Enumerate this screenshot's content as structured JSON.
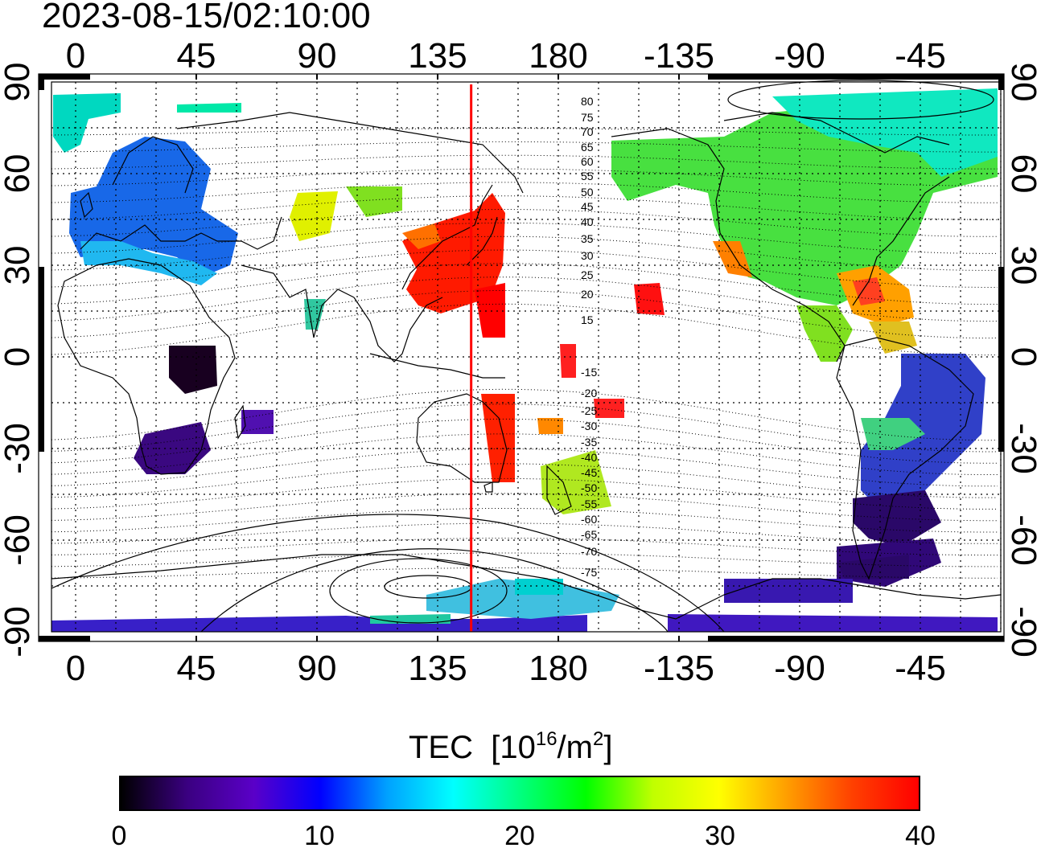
{
  "timestamp": "2023-08-15/02:10:00",
  "map": {
    "projection": "equirectangular",
    "central_longitude": 180,
    "lon_ticks_top": [
      "0",
      "45",
      "90",
      "135",
      "180",
      "-135",
      "-90",
      "-45"
    ],
    "lon_ticks_bottom": [
      "0",
      "45",
      "90",
      "135",
      "180",
      "-135",
      "-90",
      "-45"
    ],
    "lat_ticks_left": [
      "90",
      "60",
      "30",
      "0",
      "-30",
      "-60",
      "-90"
    ],
    "lat_ticks_right": [
      "90",
      "60",
      "30",
      "0",
      "-30",
      "-60",
      "-90"
    ],
    "meridian_marker": {
      "longitude": 147.5,
      "color": "#ff0000"
    },
    "magnetic_latitude_labels": [
      "80",
      "75",
      "70",
      "65",
      "60",
      "55",
      "50",
      "45",
      "40",
      "35",
      "30",
      "25",
      "20",
      "15",
      "-15",
      "-20",
      "-25",
      "-30",
      "-35",
      "-40",
      "-45",
      "-50",
      "-55",
      "-60",
      "-65",
      "-70",
      "-75"
    ],
    "grid": "dotted, every 15 degrees"
  },
  "colorbar": {
    "title": "TEC",
    "unit_prefix": "[10",
    "unit_exp": "16",
    "unit_mid": "/m",
    "unit_exp2": "2",
    "unit_suffix": "]",
    "ticks": [
      "0",
      "10",
      "20",
      "30",
      "40"
    ],
    "range": [
      0,
      40
    ],
    "stops": [
      "#000000",
      "#3a0080",
      "#5a00c8",
      "#0000ff",
      "#00a0ff",
      "#00ffff",
      "#00ff80",
      "#00ff00",
      "#c0ff00",
      "#ffff00",
      "#ffa000",
      "#ff4000",
      "#ff0000"
    ]
  },
  "tec_regions": [
    {
      "name": "europe",
      "color": "#1060e0"
    },
    {
      "name": "arctic-greenland",
      "color": "#00e0a0"
    },
    {
      "name": "north-america",
      "color": "#40e040"
    },
    {
      "name": "japan-east-asia",
      "color": "#ff1000"
    },
    {
      "name": "south-atlantic",
      "color": "#3040d0"
    },
    {
      "name": "south-africa",
      "color": "#400080"
    },
    {
      "name": "new-zealand",
      "color": "#a0e020"
    },
    {
      "name": "antarctic",
      "color": "#3010c0"
    }
  ]
}
